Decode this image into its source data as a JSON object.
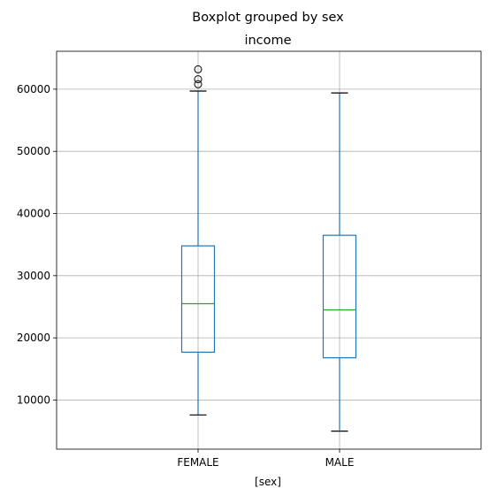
{
  "chart_data": {
    "type": "boxplot",
    "suptitle": "Boxplot grouped by sex",
    "title": "income",
    "xlabel": "[sex]",
    "ylabel": "",
    "categories": [
      "FEMALE",
      "MALE"
    ],
    "yticks": [
      10000,
      20000,
      30000,
      40000,
      50000,
      60000
    ],
    "ylim": [
      2100,
      66100
    ],
    "grid": true,
    "boxes": [
      {
        "category": "FEMALE",
        "whisker_low": 7600,
        "q1": 17700,
        "median": 25500,
        "q3": 34800,
        "whisker_high": 59700,
        "outliers": [
          60800,
          61600,
          63200
        ]
      },
      {
        "category": "MALE",
        "whisker_low": 5000,
        "q1": 16800,
        "median": 24500,
        "q3": 36500,
        "whisker_high": 59400,
        "outliers": []
      }
    ],
    "colors": {
      "box": "#1f77b4",
      "median": "#2ca02c",
      "cap": "#000000",
      "grid": "#b0b0b0"
    }
  }
}
